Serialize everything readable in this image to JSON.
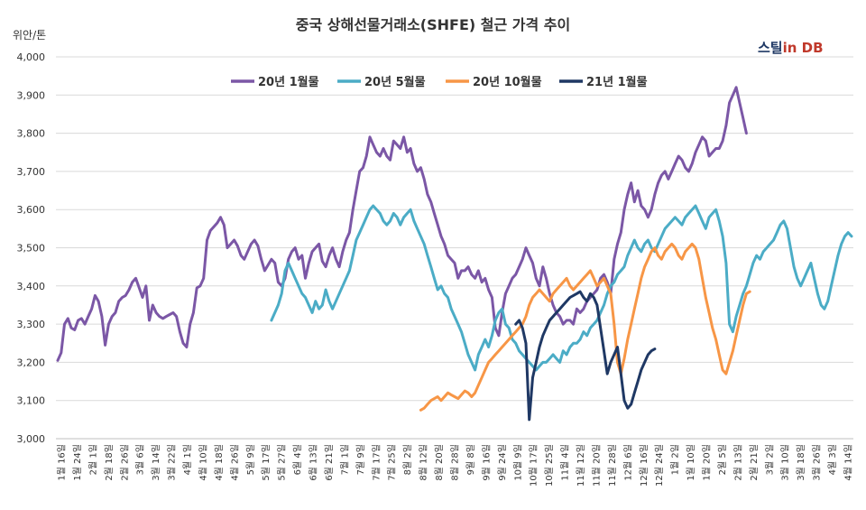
{
  "chart_data": {
    "type": "line",
    "title": "중국 상해선물거래소(SHFE) 철근 가격 추이",
    "unit_label": "위안/톤",
    "brand": {
      "part1": "스틸",
      "part2": "in DB"
    },
    "ylim": [
      3000,
      4000
    ],
    "y_ticks": [
      3000,
      3100,
      3200,
      3300,
      3400,
      3500,
      3600,
      3700,
      3800,
      3900,
      4000
    ],
    "y_tick_labels": [
      "3,000",
      "3,100",
      "3,200",
      "3,300",
      "3,400",
      "3,500",
      "3,600",
      "3,700",
      "3,800",
      "3,900",
      "4,000"
    ],
    "grid": true,
    "legend_position": "top",
    "x_tick_labels": [
      "1월 16일",
      "1월 24일",
      "2월 1일",
      "2월 18일",
      "2월 26일",
      "3월 6일",
      "3월 14일",
      "3월 22일",
      "4월 1일",
      "4월 10일",
      "4월 18일",
      "4월 26일",
      "5월 9일",
      "5월 17일",
      "5월 27일",
      "6월 4일",
      "6월 13일",
      "6월 21일",
      "7월 1일",
      "7월 9일",
      "7월 17일",
      "7월 25일",
      "8월 2일",
      "8월 12일",
      "8월 20일",
      "8월 28일",
      "9월 8일",
      "9월 16일",
      "9월 24일",
      "10월 9일",
      "10월 17일",
      "10월 25일",
      "11월 4일",
      "11월 12일",
      "11월 20일",
      "11월 28일",
      "12월 6일",
      "12월 16일",
      "12월 24일",
      "1월 2일",
      "1월 10일",
      "1월 20일",
      "2월 5일",
      "2월 13일",
      "2월 21일",
      "3월 2일",
      "3월 10일",
      "3월 18일",
      "3월 26일",
      "4월 3일",
      "4월 14일"
    ],
    "series": [
      {
        "name": "20년 1월물",
        "color": "#7B57A6",
        "start": 0,
        "values": [
          3205,
          3225,
          3300,
          3315,
          3290,
          3285,
          3310,
          3315,
          3300,
          3320,
          3340,
          3375,
          3360,
          3320,
          3245,
          3300,
          3320,
          3330,
          3360,
          3370,
          3375,
          3390,
          3410,
          3420,
          3395,
          3370,
          3400,
          3310,
          3350,
          3330,
          3320,
          3315,
          3320,
          3325,
          3330,
          3320,
          3280,
          3250,
          3240,
          3300,
          3330,
          3395,
          3400,
          3420,
          3520,
          3545,
          3555,
          3565,
          3580,
          3560,
          3500,
          3510,
          3520,
          3505,
          3480,
          3470,
          3490,
          3510,
          3520,
          3505,
          3470,
          3440,
          3455,
          3470,
          3460,
          3410,
          3400,
          3420,
          3470,
          3490,
          3500,
          3470,
          3480,
          3420,
          3460,
          3490,
          3500,
          3510,
          3465,
          3450,
          3480,
          3500,
          3470,
          3450,
          3490,
          3520,
          3540,
          3600,
          3650,
          3700,
          3710,
          3740,
          3790,
          3770,
          3750,
          3740,
          3760,
          3740,
          3730,
          3780,
          3770,
          3760,
          3790,
          3750,
          3760,
          3720,
          3700,
          3710,
          3680,
          3640,
          3620,
          3590,
          3560,
          3530,
          3510,
          3480,
          3470,
          3460,
          3420,
          3440,
          3440,
          3450,
          3430,
          3420,
          3440,
          3410,
          3420,
          3390,
          3370,
          3290,
          3270,
          3330,
          3380,
          3400,
          3420,
          3430,
          3450,
          3470,
          3500,
          3480,
          3460,
          3420,
          3400,
          3450,
          3420,
          3380,
          3350,
          3330,
          3320,
          3300,
          3310,
          3310,
          3300,
          3340,
          3330,
          3340,
          3360,
          3370,
          3380,
          3390,
          3420,
          3430,
          3410,
          3380,
          3470,
          3510,
          3540,
          3600,
          3640,
          3670,
          3620,
          3650,
          3610,
          3600,
          3580,
          3600,
          3640,
          3670,
          3690,
          3700,
          3680,
          3700,
          3720,
          3740,
          3730,
          3710,
          3700,
          3720,
          3750,
          3770,
          3790,
          3780,
          3740,
          3750,
          3760,
          3760,
          3780,
          3820,
          3880,
          3900,
          3920,
          3880,
          3840,
          3800
        ]
      },
      {
        "name": "20년 5월물",
        "color": "#4BACC6",
        "start": 63,
        "values": [
          3310,
          3330,
          3350,
          3380,
          3440,
          3460,
          3440,
          3420,
          3400,
          3380,
          3370,
          3350,
          3330,
          3360,
          3340,
          3350,
          3390,
          3360,
          3340,
          3360,
          3380,
          3400,
          3420,
          3440,
          3480,
          3520,
          3540,
          3560,
          3580,
          3600,
          3610,
          3600,
          3590,
          3570,
          3560,
          3570,
          3590,
          3580,
          3560,
          3580,
          3590,
          3600,
          3570,
          3550,
          3530,
          3510,
          3480,
          3450,
          3420,
          3390,
          3400,
          3380,
          3370,
          3340,
          3320,
          3300,
          3280,
          3250,
          3220,
          3200,
          3180,
          3220,
          3240,
          3260,
          3240,
          3270,
          3310,
          3330,
          3340,
          3300,
          3290,
          3260,
          3250,
          3230,
          3220,
          3210,
          3200,
          3190,
          3180,
          3190,
          3200,
          3200,
          3210,
          3220,
          3210,
          3200,
          3230,
          3220,
          3240,
          3250,
          3250,
          3260,
          3280,
          3270,
          3290,
          3300,
          3310,
          3330,
          3350,
          3380,
          3400,
          3410,
          3430,
          3440,
          3450,
          3480,
          3500,
          3520,
          3500,
          3490,
          3510,
          3520,
          3500,
          3490,
          3510,
          3530,
          3550,
          3560,
          3570,
          3580,
          3570,
          3560,
          3580,
          3590,
          3600,
          3610,
          3590,
          3570,
          3550,
          3580,
          3590,
          3600,
          3570,
          3530,
          3460,
          3300,
          3280,
          3320,
          3350,
          3380,
          3400,
          3430,
          3460,
          3480,
          3470,
          3490,
          3500,
          3510,
          3520,
          3540,
          3560,
          3570,
          3550,
          3500,
          3450,
          3420,
          3400,
          3420,
          3440,
          3460,
          3420,
          3380,
          3350,
          3340,
          3360,
          3400,
          3440,
          3480,
          3510,
          3530,
          3540,
          3530
        ]
      },
      {
        "name": "20년 10월물",
        "color": "#F79646",
        "start": 107,
        "values": [
          3075,
          3080,
          3090,
          3100,
          3105,
          3110,
          3100,
          3110,
          3120,
          3115,
          3110,
          3105,
          3115,
          3125,
          3120,
          3110,
          3120,
          3140,
          3160,
          3180,
          3200,
          3210,
          3220,
          3230,
          3240,
          3250,
          3260,
          3270,
          3280,
          3290,
          3300,
          3320,
          3350,
          3370,
          3380,
          3390,
          3380,
          3370,
          3360,
          3380,
          3390,
          3400,
          3410,
          3420,
          3400,
          3390,
          3400,
          3410,
          3420,
          3430,
          3440,
          3420,
          3400,
          3410,
          3420,
          3400,
          3380,
          3300,
          3200,
          3170,
          3210,
          3260,
          3300,
          3340,
          3380,
          3420,
          3450,
          3470,
          3490,
          3500,
          3480,
          3470,
          3490,
          3500,
          3510,
          3500,
          3480,
          3470,
          3490,
          3500,
          3510,
          3500,
          3470,
          3420,
          3370,
          3330,
          3290,
          3260,
          3220,
          3180,
          3170,
          3200,
          3230,
          3270,
          3310,
          3350,
          3380,
          3385
        ]
      },
      {
        "name": "21년 1월물",
        "color": "#1F3864",
        "start": 135,
        "values": [
          3300,
          3310,
          3290,
          3250,
          3050,
          3160,
          3200,
          3240,
          3270,
          3290,
          3310,
          3320,
          3330,
          3340,
          3350,
          3360,
          3370,
          3375,
          3380,
          3385,
          3370,
          3360,
          3380,
          3370,
          3350,
          3290,
          3230,
          3170,
          3200,
          3220,
          3240,
          3170,
          3100,
          3080,
          3090,
          3120,
          3150,
          3180,
          3200,
          3220,
          3230,
          3235
        ]
      }
    ]
  }
}
